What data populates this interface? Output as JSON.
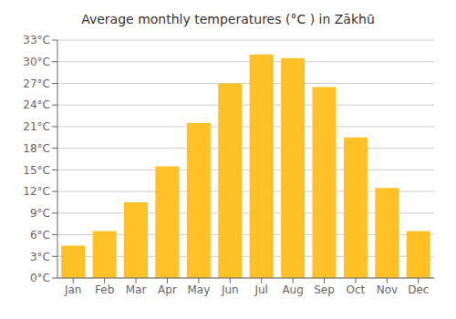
{
  "chart_data": {
    "type": "bar",
    "title": "Average monthly temperatures (°C ) in Zākhū",
    "categories": [
      "Jan",
      "Feb",
      "Mar",
      "Apr",
      "May",
      "Jun",
      "Jul",
      "Aug",
      "Sep",
      "Oct",
      "Nov",
      "Dec"
    ],
    "values": [
      4.5,
      6.5,
      10.5,
      15.5,
      21.5,
      27.0,
      31.0,
      30.5,
      26.5,
      19.5,
      12.5,
      6.5
    ],
    "color": "#FFC125",
    "ylim": [
      0,
      33
    ],
    "yticks": [
      {
        "value": 0,
        "label": "0°C"
      },
      {
        "value": 3,
        "label": "3°C"
      },
      {
        "value": 6,
        "label": "6°C"
      },
      {
        "value": 9,
        "label": "9°C"
      },
      {
        "value": 12,
        "label": "12°C"
      },
      {
        "value": 15,
        "label": "15°C"
      },
      {
        "value": 18,
        "label": "18°C"
      },
      {
        "value": 21,
        "label": "21°C"
      },
      {
        "value": 24,
        "label": "24°C"
      },
      {
        "value": 27,
        "label": "27°C"
      },
      {
        "value": 30,
        "label": "30°C"
      },
      {
        "value": 33,
        "label": "33°C"
      }
    ],
    "grid": true
  }
}
